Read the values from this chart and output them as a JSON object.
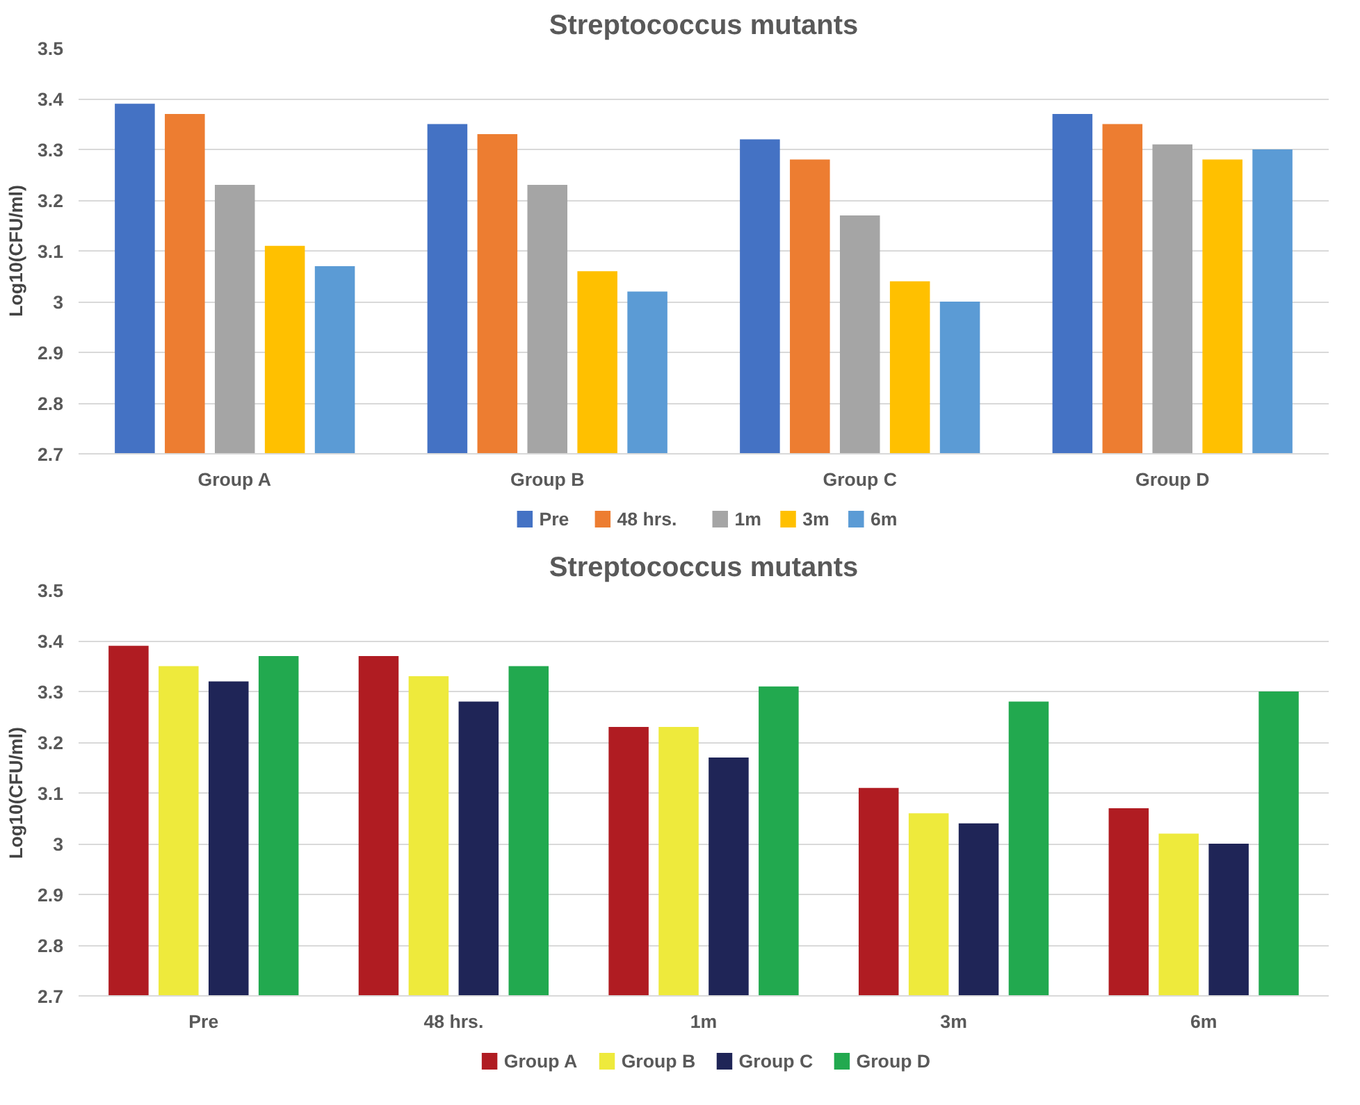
{
  "chart_data": [
    {
      "type": "bar",
      "title": "Streptococcus mutants",
      "ylabel": "Log10(CFU/ml)",
      "categories": [
        "Group A",
        "Group B",
        "Group C",
        "Group D"
      ],
      "series": [
        {
          "name": "Pre",
          "color": "#4472c4",
          "values": [
            3.39,
            3.35,
            3.32,
            3.37
          ]
        },
        {
          "name": "48 hrs.",
          "color": "#ed7d31",
          "values": [
            3.37,
            3.33,
            3.28,
            3.35
          ]
        },
        {
          "name": "1m",
          "color": "#a5a5a5",
          "values": [
            3.23,
            3.23,
            3.17,
            3.31
          ]
        },
        {
          "name": "3m",
          "color": "#ffc000",
          "values": [
            3.11,
            3.06,
            3.04,
            3.28
          ]
        },
        {
          "name": "6m",
          "color": "#5b9bd5",
          "values": [
            3.07,
            3.02,
            3.0,
            3.3
          ]
        }
      ],
      "ylim": [
        2.7,
        3.5
      ],
      "yticks": [
        2.7,
        2.8,
        2.9,
        3,
        3.1,
        3.2,
        3.3,
        3.4,
        3.5
      ],
      "grid": "y",
      "legend": "bottom"
    },
    {
      "type": "bar",
      "title": "Streptococcus mutants",
      "ylabel": "Log10(CFU/ml)",
      "categories": [
        "Pre",
        "48 hrs.",
        "1m",
        "3m",
        "6m"
      ],
      "series": [
        {
          "name": "Group A",
          "color": "#b01c22",
          "values": [
            3.39,
            3.37,
            3.23,
            3.11,
            3.07
          ]
        },
        {
          "name": "Group B",
          "color": "#eeea3c",
          "values": [
            3.35,
            3.33,
            3.23,
            3.06,
            3.02
          ]
        },
        {
          "name": "Group C",
          "color": "#1f2557",
          "values": [
            3.32,
            3.28,
            3.17,
            3.04,
            3.0
          ]
        },
        {
          "name": "Group D",
          "color": "#22a94f",
          "values": [
            3.37,
            3.35,
            3.31,
            3.28,
            3.3
          ]
        }
      ],
      "ylim": [
        2.7,
        3.5
      ],
      "yticks": [
        2.7,
        2.8,
        2.9,
        3,
        3.1,
        3.2,
        3.3,
        3.4,
        3.5
      ],
      "grid": "y",
      "legend": "bottom"
    }
  ]
}
